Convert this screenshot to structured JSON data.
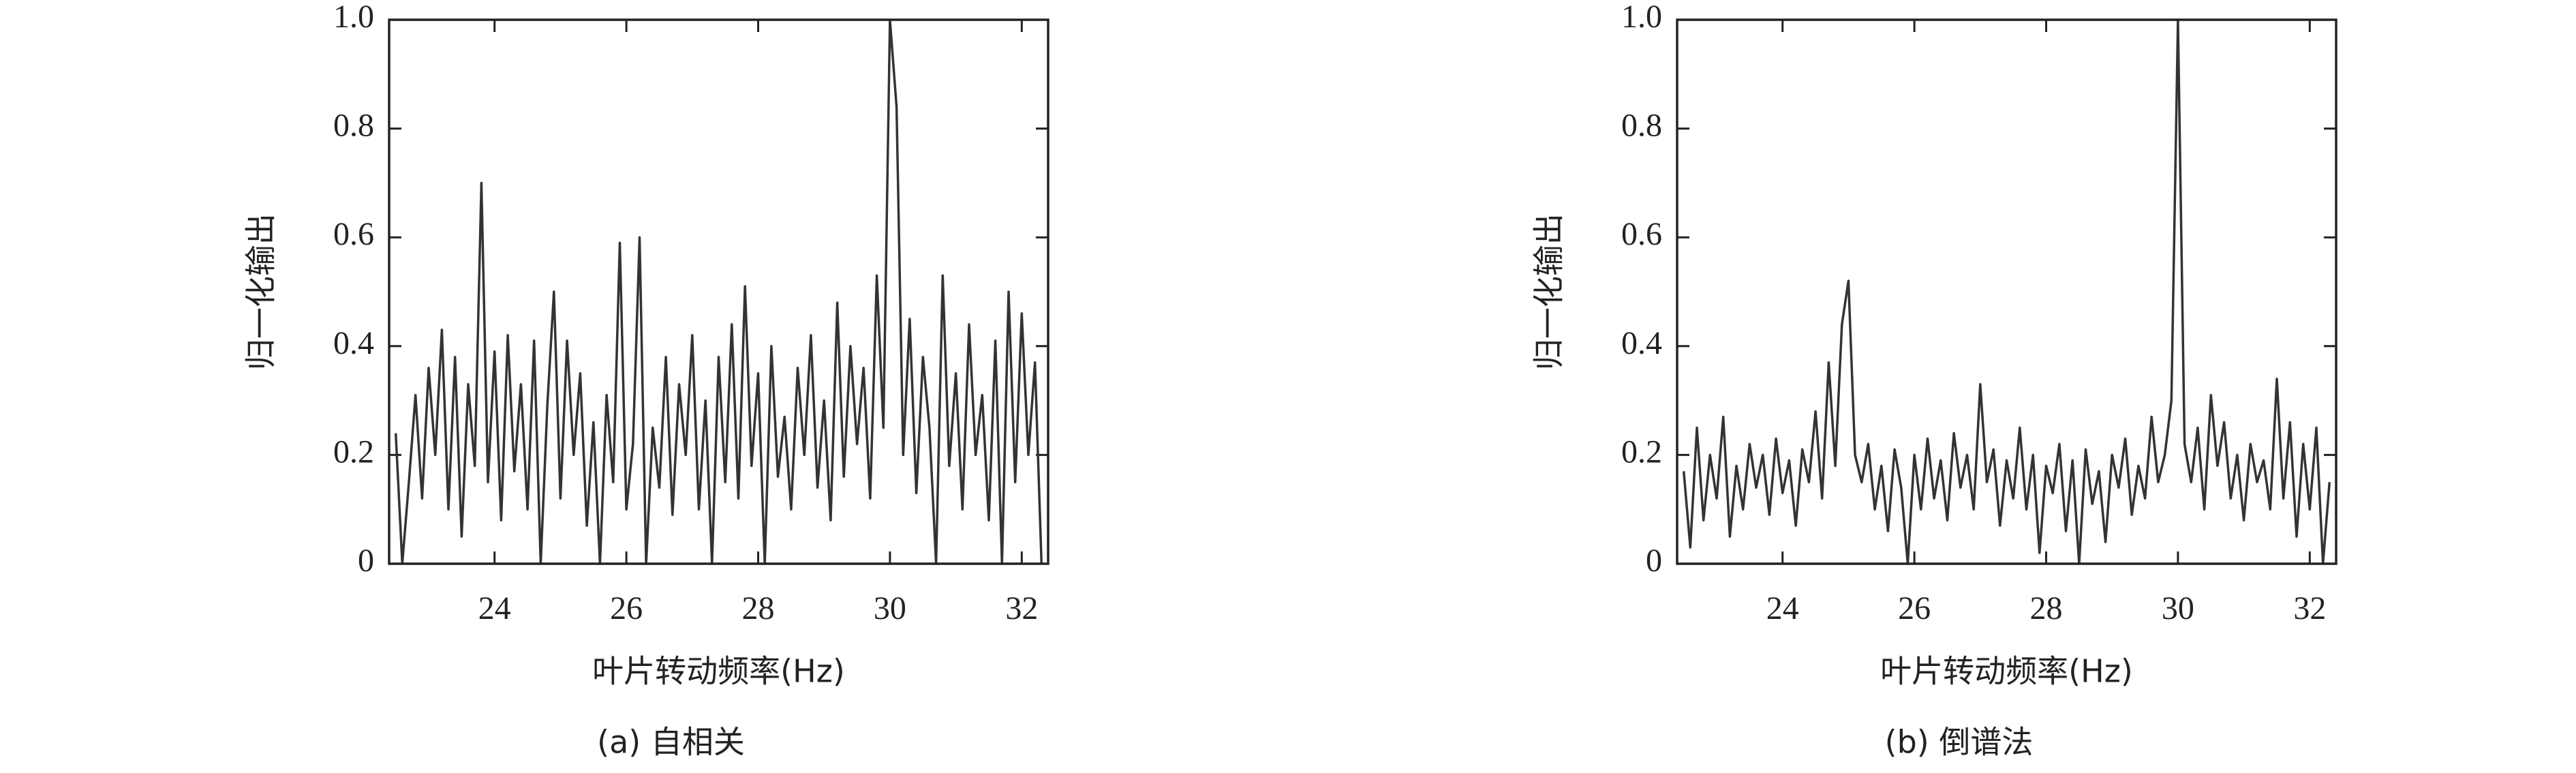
{
  "chart_data": [
    {
      "type": "line",
      "caption": "(a) 自相关",
      "x_label": "叶片转动频率(Hz)",
      "y_label": "归一化输出",
      "color": "#333333",
      "xlim": [
        22.4,
        32.4
      ],
      "xticks": [
        24,
        26,
        28,
        30,
        32
      ],
      "ylim": [
        0,
        1
      ],
      "yticks": [
        0,
        0.2,
        0.4,
        0.6,
        0.8,
        {
          "value": 1,
          "label": "1.0"
        }
      ],
      "x": [
        22.5,
        22.6,
        22.7,
        22.8,
        22.9,
        23.0,
        23.1,
        23.2,
        23.3,
        23.4,
        23.5,
        23.6,
        23.7,
        23.8,
        23.9,
        24.0,
        24.1,
        24.2,
        24.3,
        24.4,
        24.5,
        24.6,
        24.7,
        24.8,
        24.9,
        25.0,
        25.1,
        25.2,
        25.3,
        25.4,
        25.5,
        25.6,
        25.7,
        25.8,
        25.9,
        26.0,
        26.1,
        26.2,
        26.3,
        26.4,
        26.5,
        26.6,
        26.7,
        26.8,
        26.9,
        27.0,
        27.1,
        27.2,
        27.3,
        27.4,
        27.5,
        27.6,
        27.7,
        27.8,
        27.9,
        28.0,
        28.1,
        28.2,
        28.3,
        28.4,
        28.5,
        28.6,
        28.7,
        28.8,
        28.9,
        29.0,
        29.1,
        29.2,
        29.3,
        29.4,
        29.5,
        29.6,
        29.7,
        29.8,
        29.9,
        30.0,
        30.1,
        30.2,
        30.3,
        30.4,
        30.5,
        30.6,
        30.7,
        30.8,
        30.9,
        31.0,
        31.1,
        31.2,
        31.3,
        31.4,
        31.5,
        31.6,
        31.7,
        31.8,
        31.9,
        32.0,
        32.1,
        32.2,
        32.3
      ],
      "values": [
        0.24,
        0,
        0.15,
        0.31,
        0.12,
        0.36,
        0.2,
        0.43,
        0.1,
        0.38,
        0.05,
        0.33,
        0.18,
        0.7,
        0.15,
        0.39,
        0.08,
        0.42,
        0.17,
        0.33,
        0.1,
        0.41,
        0,
        0.29,
        0.5,
        0.12,
        0.41,
        0.2,
        0.35,
        0.07,
        0.26,
        0,
        0.31,
        0.15,
        0.59,
        0.1,
        0.22,
        0.6,
        0,
        0.25,
        0.14,
        0.38,
        0.09,
        0.33,
        0.2,
        0.42,
        0.1,
        0.3,
        0,
        0.38,
        0.15,
        0.44,
        0.12,
        0.51,
        0.18,
        0.35,
        0,
        0.4,
        0.16,
        0.27,
        0.1,
        0.36,
        0.2,
        0.42,
        0.14,
        0.3,
        0.08,
        0.48,
        0.16,
        0.4,
        0.22,
        0.36,
        0.12,
        0.53,
        0.25,
        1.0,
        0.84,
        0.2,
        0.45,
        0.13,
        0.38,
        0.25,
        0,
        0.53,
        0.18,
        0.35,
        0.1,
        0.44,
        0.2,
        0.31,
        0.08,
        0.41,
        0,
        0.5,
        0.15,
        0.46,
        0.2,
        0.37,
        0
      ]
    },
    {
      "type": "line",
      "caption": "(b) 倒谱法",
      "x_label": "叶片转动频率(Hz)",
      "y_label": "归一化输出",
      "color": "#333333",
      "xlim": [
        22.4,
        32.4
      ],
      "xticks": [
        24,
        26,
        28,
        30,
        32
      ],
      "ylim": [
        0,
        1
      ],
      "yticks": [
        0,
        0.2,
        0.4,
        0.6,
        0.8,
        {
          "value": 1,
          "label": "1.0"
        }
      ],
      "x": [
        22.5,
        22.6,
        22.7,
        22.8,
        22.9,
        23.0,
        23.1,
        23.2,
        23.3,
        23.4,
        23.5,
        23.6,
        23.7,
        23.8,
        23.9,
        24.0,
        24.1,
        24.2,
        24.3,
        24.4,
        24.5,
        24.6,
        24.7,
        24.8,
        24.9,
        25.0,
        25.1,
        25.2,
        25.3,
        25.4,
        25.5,
        25.6,
        25.7,
        25.8,
        25.9,
        26.0,
        26.1,
        26.2,
        26.3,
        26.4,
        26.5,
        26.6,
        26.7,
        26.8,
        26.9,
        27.0,
        27.1,
        27.2,
        27.3,
        27.4,
        27.5,
        27.6,
        27.7,
        27.8,
        27.9,
        28.0,
        28.1,
        28.2,
        28.3,
        28.4,
        28.5,
        28.6,
        28.7,
        28.8,
        28.9,
        29.0,
        29.1,
        29.2,
        29.3,
        29.4,
        29.5,
        29.6,
        29.7,
        29.8,
        29.9,
        30.0,
        30.1,
        30.2,
        30.3,
        30.4,
        30.5,
        30.6,
        30.7,
        30.8,
        30.9,
        31.0,
        31.1,
        31.2,
        31.3,
        31.4,
        31.5,
        31.6,
        31.7,
        31.8,
        31.9,
        32.0,
        32.1,
        32.2,
        32.3
      ],
      "values": [
        0.17,
        0.03,
        0.25,
        0.08,
        0.2,
        0.12,
        0.27,
        0.05,
        0.18,
        0.1,
        0.22,
        0.14,
        0.2,
        0.09,
        0.23,
        0.13,
        0.19,
        0.07,
        0.21,
        0.15,
        0.28,
        0.12,
        0.37,
        0.18,
        0.44,
        0.52,
        0.2,
        0.15,
        0.22,
        0.1,
        0.18,
        0.06,
        0.21,
        0.14,
        0,
        0.2,
        0.1,
        0.23,
        0.12,
        0.19,
        0.08,
        0.24,
        0.14,
        0.2,
        0.1,
        0.33,
        0.15,
        0.21,
        0.07,
        0.19,
        0.12,
        0.25,
        0.1,
        0.2,
        0.02,
        0.18,
        0.13,
        0.22,
        0.06,
        0.19,
        0,
        0.21,
        0.11,
        0.17,
        0.04,
        0.2,
        0.14,
        0.23,
        0.09,
        0.18,
        0.12,
        0.27,
        0.15,
        0.2,
        0.3,
        1.0,
        0.22,
        0.15,
        0.25,
        0.1,
        0.31,
        0.18,
        0.26,
        0.12,
        0.2,
        0.08,
        0.22,
        0.15,
        0.19,
        0.1,
        0.34,
        0.12,
        0.26,
        0.05,
        0.22,
        0.1,
        0.25,
        0,
        0.15
      ]
    }
  ]
}
